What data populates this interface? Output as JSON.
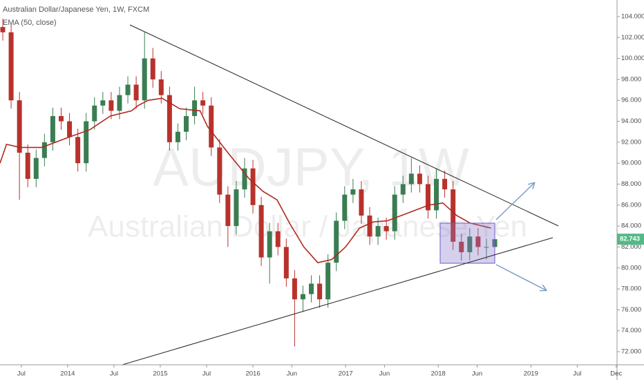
{
  "chart_data": {
    "type": "candlestick",
    "title": "Australian Dollar/Japanese Yen, 1W, FXCM",
    "watermark": {
      "symbol": "AUDJPY, 1W",
      "name": "Australian Dollar / Japanese Yen"
    },
    "x": [
      2013.3,
      2013.39,
      2013.48,
      2013.57,
      2013.66,
      2013.75,
      2013.84,
      2013.93,
      2014.02,
      2014.11,
      2014.2,
      2014.29,
      2014.38,
      2014.47,
      2014.56,
      2014.65,
      2014.74,
      2014.83,
      2014.92,
      2015.01,
      2015.1,
      2015.19,
      2015.28,
      2015.37,
      2015.46,
      2015.55,
      2015.64,
      2015.73,
      2015.82,
      2015.91,
      2016,
      2016.09,
      2016.18,
      2016.27,
      2016.36,
      2016.45,
      2016.54,
      2016.63,
      2016.72,
      2016.81,
      2016.9,
      2016.99,
      2017.08,
      2017.17,
      2017.26,
      2017.35,
      2017.44,
      2017.53,
      2017.62,
      2017.71,
      2017.8,
      2017.89,
      2017.98,
      2018.07,
      2018.16,
      2018.25,
      2018.34,
      2018.43,
      2018.52,
      2018.61
    ],
    "open": [
      103,
      102.5,
      96,
      91,
      88.5,
      90.5,
      92,
      94.5,
      94,
      92.5,
      90,
      94,
      95.5,
      96,
      95,
      96.5,
      97.5,
      96,
      100,
      98,
      96.5,
      92,
      93,
      94.5,
      96,
      95.5,
      91.5,
      87,
      84,
      87.5,
      89.5,
      86,
      81,
      83.5,
      82,
      79,
      77,
      77.5,
      78.5,
      77,
      80.5,
      84.5,
      87,
      87.5,
      85,
      83,
      84,
      83.5,
      87,
      88,
      89,
      88,
      85.5,
      88.5,
      87.5,
      82.5,
      81.5,
      83,
      82,
      82
    ],
    "high": [
      103.8,
      103.3,
      96.8,
      91.8,
      91.3,
      92.8,
      95.3,
      95.3,
      94.8,
      93.3,
      94.8,
      96.3,
      96.8,
      96.8,
      97.3,
      98.3,
      98.3,
      102.5,
      101,
      98.8,
      97.3,
      93.8,
      95.3,
      97.3,
      96.8,
      96.3,
      92.3,
      87.8,
      88.3,
      90.5,
      90.3,
      86.8,
      84.3,
      84.3,
      82.8,
      79.8,
      78.3,
      79.3,
      79.3,
      81.3,
      85.3,
      87.8,
      88.5,
      88.3,
      85.8,
      84.8,
      84.8,
      87.8,
      88.8,
      90.5,
      89.8,
      88.8,
      89.5,
      89.3,
      88.3,
      83.3,
      83.8,
      83.8,
      82.8,
      83.3
    ],
    "low": [
      101.7,
      95.2,
      86.5,
      87.7,
      87.7,
      89.7,
      91.2,
      93.2,
      91.7,
      89.2,
      89.2,
      93.2,
      94.7,
      94.2,
      94.2,
      95.7,
      95.2,
      95.2,
      97.2,
      95.7,
      91.2,
      91.2,
      92.2,
      93.7,
      94.7,
      90.7,
      86.2,
      82,
      83.2,
      86.7,
      85.2,
      80.2,
      78.5,
      81.2,
      78.2,
      72.5,
      75.8,
      76.7,
      76.2,
      76.2,
      79.7,
      83.7,
      86.2,
      84.2,
      82.2,
      82.2,
      82.7,
      82.7,
      86.2,
      87.2,
      87.2,
      84.7,
      84.7,
      86.7,
      81.7,
      80.7,
      80.7,
      81.2,
      80.8,
      81.2
    ],
    "close": [
      102.5,
      96,
      91,
      88.5,
      90.5,
      92,
      94.5,
      94,
      92.5,
      90,
      94,
      95.5,
      96,
      95,
      96.5,
      97.5,
      96,
      100,
      98,
      96.5,
      92,
      93,
      94.5,
      96,
      95.5,
      91.5,
      87,
      84,
      87.5,
      89.5,
      86,
      81,
      83.5,
      82,
      79,
      77,
      77.5,
      78.5,
      77,
      80.5,
      84.5,
      87,
      87.5,
      85,
      83,
      84,
      83.5,
      87,
      88,
      89,
      88,
      85.5,
      88.5,
      87.5,
      82.5,
      81.5,
      83,
      82,
      82,
      82.743
    ],
    "up_color": "#3b7d53",
    "down_color": "#b8322c",
    "overlay": {
      "name": "EMA (50, close)",
      "color": "#b0281e",
      "x": [
        2013.27,
        2013.34,
        2013.49,
        2013.72,
        2014.02,
        2014.24,
        2014.46,
        2014.69,
        2014.76,
        2014.87,
        2015.02,
        2015.21,
        2015.43,
        2015.51,
        2015.73,
        2015.96,
        2016.11,
        2016.26,
        2016.4,
        2016.55,
        2016.7,
        2016.85,
        2017,
        2017.15,
        2017.3,
        2017.45,
        2017.6,
        2017.75,
        2017.9,
        2018.05,
        2018.2,
        2018.34,
        2018.57
      ],
      "values": [
        90,
        91.8,
        91.5,
        91.5,
        92.5,
        93.2,
        94.5,
        95,
        95.5,
        96,
        96.2,
        95.2,
        95,
        93.5,
        91,
        88.5,
        87.3,
        86.5,
        84.2,
        82,
        80.5,
        80.8,
        82,
        83.8,
        84.4,
        84.5,
        85,
        85.5,
        86,
        86.2,
        85,
        84.3,
        83.8
      ]
    },
    "last_price": 82.743,
    "last_price_color": "#53b987",
    "xlim": [
      2013.27,
      2019.93
    ],
    "ylim": [
      70.75,
      105.58
    ],
    "xticks": [
      {
        "value": 2013.5,
        "label": "Jul"
      },
      {
        "value": 2014,
        "label": "2014"
      },
      {
        "value": 2014.5,
        "label": "Jul"
      },
      {
        "value": 2015,
        "label": "2015"
      },
      {
        "value": 2015.5,
        "label": "Jul"
      },
      {
        "value": 2016,
        "label": "2016"
      },
      {
        "value": 2016.42,
        "label": "Jun"
      },
      {
        "value": 2017,
        "label": "2017"
      },
      {
        "value": 2017.42,
        "label": "Jun"
      },
      {
        "value": 2018,
        "label": "2018"
      },
      {
        "value": 2018.42,
        "label": "Jun"
      },
      {
        "value": 2019,
        "label": "2019"
      },
      {
        "value": 2019.5,
        "label": "Jul"
      },
      {
        "value": 2019.92,
        "label": "Dec"
      }
    ],
    "yticks": [
      {
        "value": 72,
        "label": "72.000"
      },
      {
        "value": 74,
        "label": "74.000"
      },
      {
        "value": 76,
        "label": "76.000"
      },
      {
        "value": 78,
        "label": "78.000"
      },
      {
        "value": 80,
        "label": "80.000"
      },
      {
        "value": 82,
        "label": "82.000"
      },
      {
        "value": 84,
        "label": "84.000"
      },
      {
        "value": 86,
        "label": "86.000"
      },
      {
        "value": 88,
        "label": "88.000"
      },
      {
        "value": 90,
        "label": "90.000"
      },
      {
        "value": 92,
        "label": "92.000"
      },
      {
        "value": 94,
        "label": "94.000"
      },
      {
        "value": 96,
        "label": "96.000"
      },
      {
        "value": 98,
        "label": "98.000"
      },
      {
        "value": 100,
        "label": "100.000"
      },
      {
        "value": 102,
        "label": "102.000"
      },
      {
        "value": 104,
        "label": "104.000"
      }
    ],
    "grid": false
  }
}
